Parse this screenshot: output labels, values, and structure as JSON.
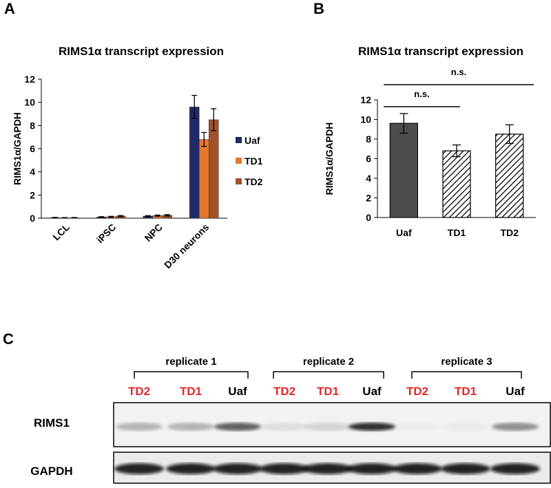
{
  "panel_labels": [
    "A",
    "B",
    "C"
  ],
  "chart_data": [
    {
      "type": "bar",
      "title": "RIMS1α transcript expression",
      "ylabel": "RIMS1α/GAPDH",
      "categories": [
        "LCL",
        "iPSC",
        "NPC",
        "D30 neurons"
      ],
      "series": [
        {
          "name": "Uaf",
          "color": "#1f2a66",
          "values": [
            0.05,
            0.1,
            0.18,
            9.6
          ],
          "errors": [
            0.02,
            0.03,
            0.04,
            1.0
          ]
        },
        {
          "name": "TD1",
          "color": "#e8762b",
          "values": [
            0.03,
            0.12,
            0.22,
            6.8
          ],
          "errors": [
            0.02,
            0.04,
            0.05,
            0.6
          ]
        },
        {
          "name": "TD2",
          "color": "#a2512a",
          "values": [
            0.04,
            0.18,
            0.25,
            8.5
          ],
          "errors": [
            0.02,
            0.05,
            0.06,
            0.95
          ]
        }
      ],
      "ylim": [
        0,
        12
      ],
      "yticks": [
        0,
        2,
        4,
        6,
        8,
        10,
        12
      ],
      "legend": "right"
    },
    {
      "type": "bar",
      "title": "RIMS1α transcript expression",
      "ylabel": "RIMS1α/GAPDH",
      "categories": [
        "Uaf",
        "TD1",
        "TD2"
      ],
      "values": [
        9.6,
        6.8,
        8.5
      ],
      "errors": [
        1.0,
        0.6,
        0.95
      ],
      "colors": [
        "#4d4d4d",
        "#ffffff",
        "#ffffff"
      ],
      "hatch": [
        false,
        true,
        true
      ],
      "annotations": [
        "n.s.",
        "n.s."
      ],
      "ylim": [
        0,
        12
      ],
      "yticks": [
        0,
        2,
        4,
        6,
        8,
        10,
        12
      ]
    }
  ],
  "blot": {
    "replicates": [
      "replicate 1",
      "replicate 2",
      "replicate 3"
    ],
    "lanes": [
      "TD2",
      "TD1",
      "Uaf",
      "TD2",
      "TD1",
      "Uaf",
      "TD2",
      "TD1",
      "Uaf"
    ],
    "rows": [
      "RIMS1",
      "GAPDH"
    ]
  }
}
